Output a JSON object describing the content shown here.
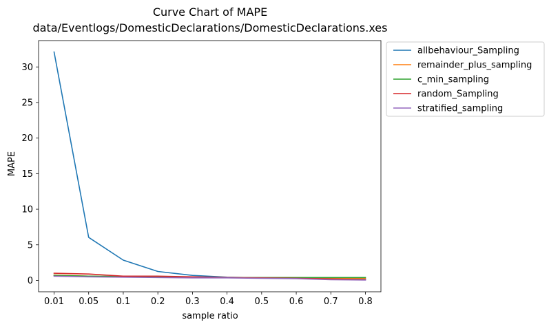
{
  "chart_data": {
    "type": "line",
    "title": "Curve Chart of MAPE",
    "subtitle": "data/Eventlogs/DomesticDeclarations/DomesticDeclarations.xes",
    "xlabel": "sample ratio",
    "ylabel": "MAPE",
    "categories": [
      "0.01",
      "0.05",
      "0.1",
      "0.2",
      "0.3",
      "0.4",
      "0.5",
      "0.6",
      "0.7",
      "0.8"
    ],
    "ylim": [
      -1.6,
      33.7
    ],
    "yticks": [
      "0",
      "5",
      "10",
      "15",
      "20",
      "25",
      "30"
    ],
    "grid": false,
    "legend_position": "outside top-right",
    "series": [
      {
        "name": "allbehaviour_Sampling",
        "color": "#1f77b4",
        "values": [
          32.1,
          6.05,
          2.85,
          1.25,
          0.7,
          0.45,
          0.35,
          0.3,
          0.2,
          0.15
        ]
      },
      {
        "name": "remainder_plus_sampling",
        "color": "#ff7f0e",
        "values": [
          0.75,
          0.6,
          0.5,
          0.5,
          0.45,
          0.4,
          0.35,
          0.35,
          0.3,
          0.3
        ]
      },
      {
        "name": "c_min_sampling",
        "color": "#2ca02c",
        "values": [
          0.7,
          0.6,
          0.55,
          0.5,
          0.45,
          0.4,
          0.4,
          0.4,
          0.4,
          0.4
        ]
      },
      {
        "name": "random_Sampling",
        "color": "#d62728",
        "values": [
          1.0,
          0.9,
          0.6,
          0.6,
          0.5,
          0.4,
          0.35,
          0.3,
          0.2,
          0.1
        ]
      },
      {
        "name": "stratified_sampling",
        "color": "#9467bd",
        "values": [
          0.6,
          0.5,
          0.45,
          0.4,
          0.35,
          0.35,
          0.3,
          0.25,
          0.1,
          0.05
        ]
      }
    ]
  }
}
